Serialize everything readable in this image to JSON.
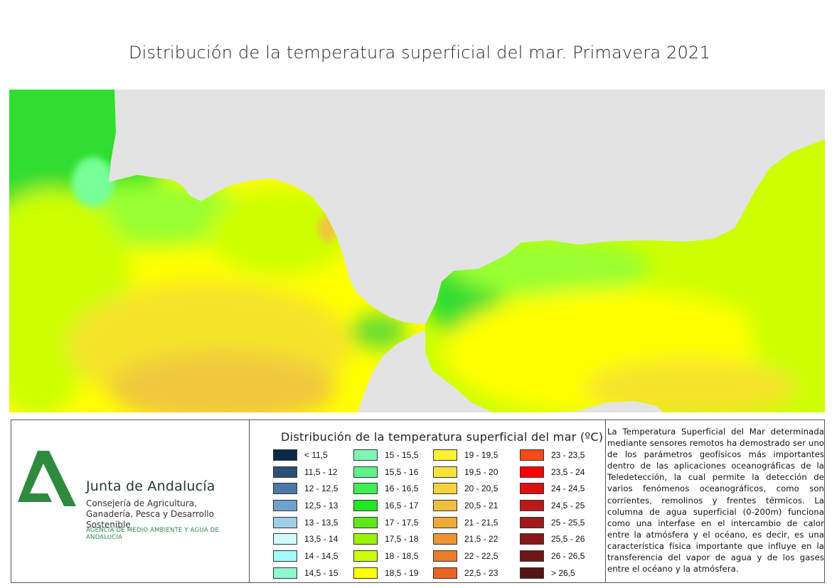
{
  "title": "Distribución de la temperatura superficial del mar. Primavera 2021",
  "map": {
    "land_color": "#e3e3e3",
    "sea_colors": [
      "#33dd33",
      "#66ff66",
      "#77ff99",
      "#99ff33",
      "#ccff00",
      "#ffff00",
      "#f5e32a",
      "#f0c83c"
    ]
  },
  "organization": {
    "name": "Junta de Andalucía",
    "department": "Consejería de Agricultura, Ganadería, Pesca y Desarrollo Sostenible",
    "agency": "AGENCIA DE MEDIO AMBIENTE Y AGUA DE ANDALUCÍA",
    "logo_color": "#2e8b3e"
  },
  "legend": {
    "title": "Distribución de la temperatura superficial del mar (ºC)",
    "items": [
      {
        "label": "< 11,5",
        "color": "#0a2a4a"
      },
      {
        "label": "11,5 - 12",
        "color": "#2c5178"
      },
      {
        "label": "12 - 12,5",
        "color": "#4a78a8"
      },
      {
        "label": "12,5 - 13",
        "color": "#6fa3cf"
      },
      {
        "label": "13 - 13,5",
        "color": "#9ecfe6"
      },
      {
        "label": "13,5 - 14",
        "color": "#d4fbfb"
      },
      {
        "label": "14 - 14,5",
        "color": "#a4fbfb"
      },
      {
        "label": "14,5 - 15",
        "color": "#8ef8cf"
      },
      {
        "label": "15 - 15,5",
        "color": "#7ef5b4"
      },
      {
        "label": "15,5 - 16",
        "color": "#5ef288"
      },
      {
        "label": "16 - 16,5",
        "color": "#3dee55"
      },
      {
        "label": "16,5 - 17",
        "color": "#1fe81f"
      },
      {
        "label": "17 - 17,5",
        "color": "#5ce81a"
      },
      {
        "label": "17,5 - 18",
        "color": "#99f200"
      },
      {
        "label": "18 - 18,5",
        "color": "#ccff00"
      },
      {
        "label": "18,5 - 19",
        "color": "#ffff00"
      },
      {
        "label": "19 - 19,5",
        "color": "#fbf233"
      },
      {
        "label": "19,5 - 20",
        "color": "#f8e33a"
      },
      {
        "label": "20 - 20,5",
        "color": "#f5d23c"
      },
      {
        "label": "20,5 - 21",
        "color": "#f2bf3c"
      },
      {
        "label": "21 - 21,5",
        "color": "#f0aa37"
      },
      {
        "label": "21,5 - 22",
        "color": "#ee9430"
      },
      {
        "label": "22 - 22,5",
        "color": "#ec7c29"
      },
      {
        "label": "22,5 - 23",
        "color": "#eb6322"
      },
      {
        "label": "23 - 23,5",
        "color": "#f54a1a"
      },
      {
        "label": "23,5 - 24",
        "color": "#ff0000"
      },
      {
        "label": "24 - 24,5",
        "color": "#dc1010"
      },
      {
        "label": "24,5 - 25",
        "color": "#bc1818"
      },
      {
        "label": "25 - 25,5",
        "color": "#a01818"
      },
      {
        "label": "25,5 - 26",
        "color": "#861818"
      },
      {
        "label": "26 - 26,5",
        "color": "#6e1616"
      },
      {
        "label": "> 26,5",
        "color": "#561414"
      }
    ]
  },
  "description": "La Temperatura Superficial del Mar determinada mediante sensores remotos ha demostrado ser uno de los parámetros geofísicos más importantes dentro de las aplicaciones oceanográficas de la Teledetección, la cual permite la detección de varios fenómenos oceanográficos, como son corrientes, remolinos y frentes térmicos. La columna de agua superficial (0-200m) funciona como una interfase en el intercambio de calor entre la atmósfera y el océano, es decir, es una característica física importante que influye en la transferencia del vapor de agua y de los gases entre el océano y la atmósfera."
}
